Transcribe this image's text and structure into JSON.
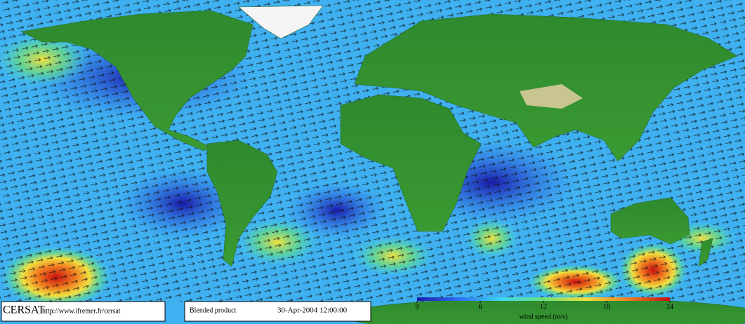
{
  "footer": {
    "logo": "CERSAT",
    "url": "http://www.ifremer.fr/cersat",
    "product": "Blended product",
    "date": "30-Apr-2004 12:00:00"
  },
  "colorbar": {
    "label": "wind speed (m/s)",
    "range": [
      0,
      24
    ],
    "ticks": [
      0,
      6,
      12,
      18,
      24
    ],
    "colors": [
      "#1a1aa8",
      "#2f6ff0",
      "#3fd8f0",
      "#6be07a",
      "#f0e040",
      "#f08020",
      "#c81010"
    ]
  }
}
